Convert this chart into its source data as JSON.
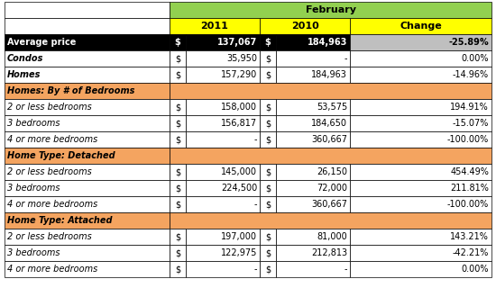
{
  "title": "February",
  "col_headers": [
    "2011",
    "2010",
    "Change"
  ],
  "rows": [
    {
      "label": "Average price",
      "d2011": "$",
      "v2011": "137,067",
      "d2010": "$",
      "v2010": "184,963",
      "change": "-25.89%",
      "row_bg": "#000000",
      "label_color": "#ffffff",
      "label_bold": true,
      "label_italic": false,
      "val_bold": true,
      "val_color": "#ffffff",
      "change_bg": "#bfbfbf",
      "change_color": "#000000",
      "is_header": false
    },
    {
      "label": "Condos",
      "d2011": "$",
      "v2011": "35,950",
      "d2010": "$",
      "v2010": "-",
      "change": "0.00%",
      "row_bg": "#ffffff",
      "label_color": "#000000",
      "label_bold": true,
      "label_italic": true,
      "val_bold": false,
      "val_color": "#000000",
      "change_bg": "#ffffff",
      "change_color": "#000000",
      "is_header": false
    },
    {
      "label": "Homes",
      "d2011": "$",
      "v2011": "157,290",
      "d2010": "$",
      "v2010": "184,963",
      "change": "-14.96%",
      "row_bg": "#ffffff",
      "label_color": "#000000",
      "label_bold": true,
      "label_italic": true,
      "val_bold": false,
      "val_color": "#000000",
      "change_bg": "#ffffff",
      "change_color": "#000000",
      "is_header": false
    },
    {
      "label": "Homes: By # of Bedrooms",
      "d2011": "",
      "v2011": "",
      "d2010": "",
      "v2010": "",
      "change": "",
      "row_bg": "#f4a460",
      "label_color": "#000000",
      "label_bold": true,
      "label_italic": true,
      "val_bold": false,
      "val_color": "#000000",
      "change_bg": "#f4a460",
      "change_color": "#000000",
      "is_header": true
    },
    {
      "label": "2 or less bedrooms",
      "d2011": "$",
      "v2011": "158,000",
      "d2010": "$",
      "v2010": "53,575",
      "change": "194.91%",
      "row_bg": "#ffffff",
      "label_color": "#000000",
      "label_bold": false,
      "label_italic": true,
      "val_bold": false,
      "val_color": "#000000",
      "change_bg": "#ffffff",
      "change_color": "#000000",
      "is_header": false
    },
    {
      "label": "3 bedrooms",
      "d2011": "$",
      "v2011": "156,817",
      "d2010": "$",
      "v2010": "184,650",
      "change": "-15.07%",
      "row_bg": "#ffffff",
      "label_color": "#000000",
      "label_bold": false,
      "label_italic": true,
      "val_bold": false,
      "val_color": "#000000",
      "change_bg": "#ffffff",
      "change_color": "#000000",
      "is_header": false
    },
    {
      "label": "4 or more bedrooms",
      "d2011": "$",
      "v2011": "-",
      "d2010": "$",
      "v2010": "360,667",
      "change": "-100.00%",
      "row_bg": "#ffffff",
      "label_color": "#000000",
      "label_bold": false,
      "label_italic": true,
      "val_bold": false,
      "val_color": "#000000",
      "change_bg": "#ffffff",
      "change_color": "#000000",
      "is_header": false
    },
    {
      "label": "Home Type: Detached",
      "d2011": "",
      "v2011": "",
      "d2010": "",
      "v2010": "",
      "change": "",
      "row_bg": "#f4a460",
      "label_color": "#000000",
      "label_bold": true,
      "label_italic": true,
      "val_bold": false,
      "val_color": "#000000",
      "change_bg": "#f4a460",
      "change_color": "#000000",
      "is_header": true
    },
    {
      "label": "2 or less bedrooms",
      "d2011": "$",
      "v2011": "145,000",
      "d2010": "$",
      "v2010": "26,150",
      "change": "454.49%",
      "row_bg": "#ffffff",
      "label_color": "#000000",
      "label_bold": false,
      "label_italic": true,
      "val_bold": false,
      "val_color": "#000000",
      "change_bg": "#ffffff",
      "change_color": "#000000",
      "is_header": false
    },
    {
      "label": "3 bedrooms",
      "d2011": "$",
      "v2011": "224,500",
      "d2010": "$",
      "v2010": "72,000",
      "change": "211.81%",
      "row_bg": "#ffffff",
      "label_color": "#000000",
      "label_bold": false,
      "label_italic": true,
      "val_bold": false,
      "val_color": "#000000",
      "change_bg": "#ffffff",
      "change_color": "#000000",
      "is_header": false
    },
    {
      "label": "4 or more bedrooms",
      "d2011": "$",
      "v2011": "-",
      "d2010": "$",
      "v2010": "360,667",
      "change": "-100.00%",
      "row_bg": "#ffffff",
      "label_color": "#000000",
      "label_bold": false,
      "label_italic": true,
      "val_bold": false,
      "val_color": "#000000",
      "change_bg": "#ffffff",
      "change_color": "#000000",
      "is_header": false
    },
    {
      "label": "Home Type: Attached",
      "d2011": "",
      "v2011": "",
      "d2010": "",
      "v2010": "",
      "change": "",
      "row_bg": "#f4a460",
      "label_color": "#000000",
      "label_bold": true,
      "label_italic": true,
      "val_bold": false,
      "val_color": "#000000",
      "change_bg": "#f4a460",
      "change_color": "#000000",
      "is_header": true
    },
    {
      "label": "2 or less bedrooms",
      "d2011": "$",
      "v2011": "197,000",
      "d2010": "$",
      "v2010": "81,000",
      "change": "143.21%",
      "row_bg": "#ffffff",
      "label_color": "#000000",
      "label_bold": false,
      "label_italic": true,
      "val_bold": false,
      "val_color": "#000000",
      "change_bg": "#ffffff",
      "change_color": "#000000",
      "is_header": false
    },
    {
      "label": "3 bedrooms",
      "d2011": "$",
      "v2011": "122,975",
      "d2010": "$",
      "v2010": "212,813",
      "change": "-42.21%",
      "row_bg": "#ffffff",
      "label_color": "#000000",
      "label_bold": false,
      "label_italic": true,
      "val_bold": false,
      "val_color": "#000000",
      "change_bg": "#ffffff",
      "change_color": "#000000",
      "is_header": false
    },
    {
      "label": "4 or more bedrooms",
      "d2011": "$",
      "v2011": "-",
      "d2010": "$",
      "v2010": "-",
      "change": "0.00%",
      "row_bg": "#ffffff",
      "label_color": "#000000",
      "label_bold": false,
      "label_italic": true,
      "val_bold": false,
      "val_color": "#000000",
      "change_bg": "#ffffff",
      "change_color": "#000000",
      "is_header": false
    }
  ],
  "title_bg": "#92d050",
  "header_bg": "#ffff00",
  "change_header_bg": "#ffff00",
  "fig_width": 5.5,
  "fig_height": 3.2,
  "dpi": 100
}
